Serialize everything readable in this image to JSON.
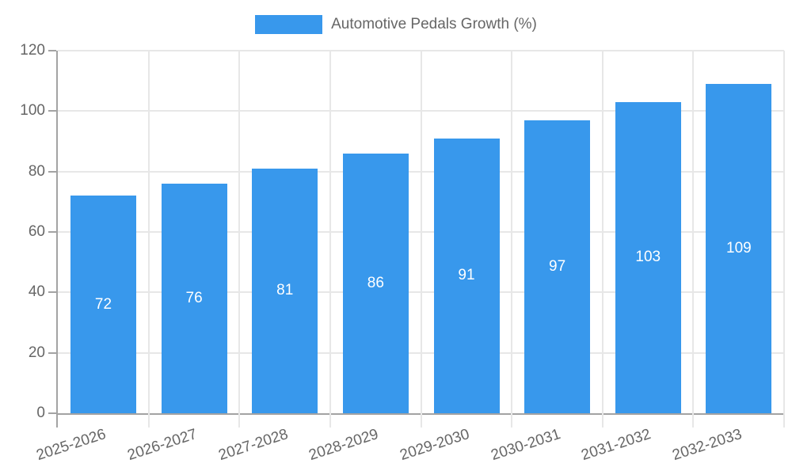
{
  "legend": {
    "label": "Automotive Pedals Growth (%)"
  },
  "chart_data": {
    "type": "bar",
    "title": "Automotive Pedals Growth (%)",
    "categories": [
      "2025-2026",
      "2026-2027",
      "2027-2028",
      "2028-2029",
      "2029-2030",
      "2030-2031",
      "2031-2032",
      "2032-2033"
    ],
    "series": [
      {
        "name": "Automotive Pedals Growth (%)",
        "values": [
          72,
          76,
          81,
          86,
          91,
          97,
          103,
          109
        ]
      }
    ],
    "value_labels_shown": true,
    "xlabel": "",
    "ylabel": "",
    "ylim": [
      0,
      120
    ],
    "ytick_step": 20,
    "yticks": [
      0,
      20,
      40,
      60,
      80,
      100,
      120
    ],
    "grid": true,
    "legend_position": "top",
    "x_tick_rotation_deg": -18
  },
  "colors": {
    "bar": "#3898ec",
    "axis": "#a3a3a3",
    "gridline": "#e7e7e7",
    "tick_text": "#666666",
    "value_label_text": "#ffffff",
    "background": "#ffffff"
  }
}
